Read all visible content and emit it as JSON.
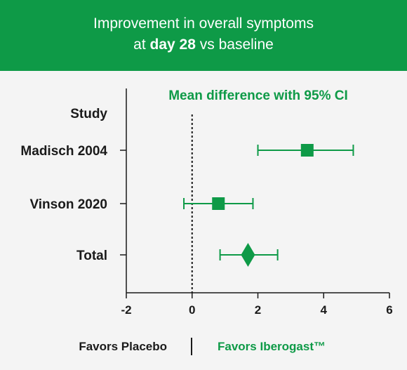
{
  "title": {
    "line1": "Improvement in overall symptoms",
    "line2_prefix": "at",
    "line2_bold": "day 28",
    "line2_suffix": "vs baseline"
  },
  "footer": {
    "left": "Favors Placebo",
    "right": "Favors Iberogast™"
  },
  "colors": {
    "accent": "#0e9a47",
    "text": "#1a1a1a"
  },
  "chart_data": {
    "type": "forest",
    "subtitle": "Mean difference with 95% CI",
    "header": "Study",
    "reference_line": 0,
    "xlim": [
      -2,
      6
    ],
    "xticks": [
      -2,
      0,
      2,
      4,
      6
    ],
    "grid": false,
    "rows": [
      {
        "label": "Madisch 2004",
        "estimate": 3.5,
        "lower": 2.0,
        "upper": 4.9,
        "marker": "square"
      },
      {
        "label": "Vinson 2020",
        "estimate": 0.8,
        "lower": -0.25,
        "upper": 1.85,
        "marker": "square"
      },
      {
        "label": "Total",
        "estimate": 1.7,
        "lower": 0.85,
        "upper": 2.6,
        "marker": "diamond"
      }
    ]
  }
}
